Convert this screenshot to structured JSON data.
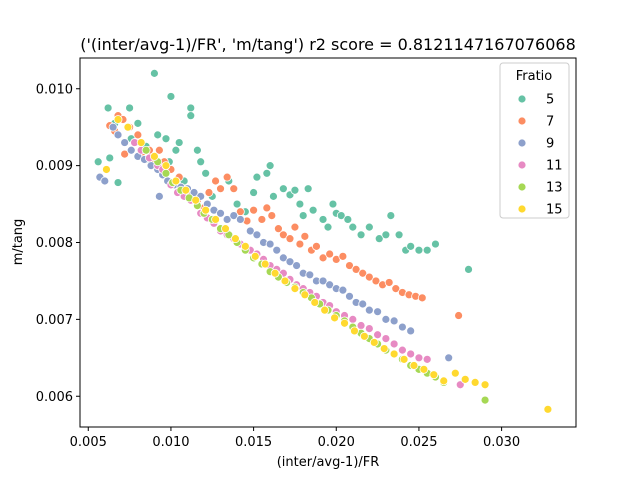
{
  "chart_data": {
    "type": "scatter",
    "title": "('(inter/avg-1)/FR', 'm/tang') r2 score = 0.8121147167076068",
    "xlabel": "(inter/avg-1)/FR",
    "ylabel": "m/tang",
    "xlim": [
      0.0045,
      0.0345
    ],
    "ylim": [
      0.0056,
      0.0104
    ],
    "xticks": [
      0.005,
      0.01,
      0.015,
      0.02,
      0.025,
      0.03
    ],
    "xtick_labels": [
      "0.005",
      "0.010",
      "0.015",
      "0.020",
      "0.025",
      "0.030"
    ],
    "yticks": [
      0.006,
      0.007,
      0.008,
      0.009,
      0.01
    ],
    "ytick_labels": [
      "0.006",
      "0.007",
      "0.008",
      "0.009",
      "0.010"
    ],
    "grid": false,
    "legend": {
      "title": "Fratio",
      "placement": "top-right"
    },
    "series": [
      {
        "name": "5",
        "color": "#66c2a5",
        "points": [
          [
            0.0056,
            0.00905
          ],
          [
            0.0062,
            0.00975
          ],
          [
            0.0063,
            0.0091
          ],
          [
            0.0066,
            0.00955
          ],
          [
            0.0068,
            0.00878
          ],
          [
            0.0075,
            0.00975
          ],
          [
            0.0076,
            0.00935
          ],
          [
            0.008,
            0.00955
          ],
          [
            0.0085,
            0.00925
          ],
          [
            0.0088,
            0.00905
          ],
          [
            0.009,
            0.0102
          ],
          [
            0.0092,
            0.0094
          ],
          [
            0.0097,
            0.00935
          ],
          [
            0.0099,
            0.00905
          ],
          [
            0.01,
            0.0099
          ],
          [
            0.0103,
            0.0092
          ],
          [
            0.0105,
            0.0093
          ],
          [
            0.0108,
            0.0088
          ],
          [
            0.0112,
            0.00975
          ],
          [
            0.0112,
            0.00965
          ],
          [
            0.0116,
            0.0092
          ],
          [
            0.0118,
            0.00905
          ],
          [
            0.0121,
            0.0089
          ],
          [
            0.0125,
            0.0086
          ],
          [
            0.0135,
            0.0088
          ],
          [
            0.014,
            0.0085
          ],
          [
            0.0145,
            0.0084
          ],
          [
            0.015,
            0.00865
          ],
          [
            0.0152,
            0.00885
          ],
          [
            0.0158,
            0.0089
          ],
          [
            0.016,
            0.009
          ],
          [
            0.0162,
            0.0086
          ],
          [
            0.0168,
            0.0087
          ],
          [
            0.0172,
            0.00862
          ],
          [
            0.0175,
            0.00868
          ],
          [
            0.0178,
            0.0085
          ],
          [
            0.018,
            0.00835
          ],
          [
            0.0183,
            0.0087
          ],
          [
            0.0186,
            0.00842
          ],
          [
            0.0192,
            0.0083
          ],
          [
            0.0195,
            0.0082
          ],
          [
            0.0198,
            0.0085
          ],
          [
            0.02,
            0.00838
          ],
          [
            0.0203,
            0.00835
          ],
          [
            0.0207,
            0.0083
          ],
          [
            0.021,
            0.0082
          ],
          [
            0.0215,
            0.0081
          ],
          [
            0.022,
            0.0082
          ],
          [
            0.0226,
            0.00805
          ],
          [
            0.023,
            0.0081
          ],
          [
            0.0233,
            0.00835
          ],
          [
            0.0238,
            0.0081
          ],
          [
            0.0242,
            0.0079
          ],
          [
            0.0245,
            0.00795
          ],
          [
            0.025,
            0.0079
          ],
          [
            0.0255,
            0.0079
          ],
          [
            0.026,
            0.00798
          ],
          [
            0.028,
            0.00765
          ]
        ]
      },
      {
        "name": "7",
        "color": "#fc8d62",
        "points": [
          [
            0.0063,
            0.00952
          ],
          [
            0.0066,
            0.00945
          ],
          [
            0.0068,
            0.00965
          ],
          [
            0.0071,
            0.0096
          ],
          [
            0.0072,
            0.00915
          ],
          [
            0.0075,
            0.0095
          ],
          [
            0.0078,
            0.0093
          ],
          [
            0.008,
            0.0094
          ],
          [
            0.0083,
            0.00918
          ],
          [
            0.0087,
            0.0092
          ],
          [
            0.009,
            0.00908
          ],
          [
            0.0093,
            0.0092
          ],
          [
            0.0096,
            0.00905
          ],
          [
            0.01,
            0.00895
          ],
          [
            0.0105,
            0.00885
          ],
          [
            0.0108,
            0.00868
          ],
          [
            0.0112,
            0.00862
          ],
          [
            0.0116,
            0.00855
          ],
          [
            0.012,
            0.00845
          ],
          [
            0.0123,
            0.00865
          ],
          [
            0.0127,
            0.0088
          ],
          [
            0.013,
            0.0087
          ],
          [
            0.0134,
            0.00885
          ],
          [
            0.0138,
            0.0087
          ],
          [
            0.0142,
            0.0084
          ],
          [
            0.0146,
            0.00828
          ],
          [
            0.015,
            0.00842
          ],
          [
            0.0155,
            0.0083
          ],
          [
            0.0158,
            0.00845
          ],
          [
            0.0161,
            0.00835
          ],
          [
            0.0165,
            0.00818
          ],
          [
            0.0168,
            0.0081
          ],
          [
            0.0172,
            0.00805
          ],
          [
            0.0175,
            0.0082
          ],
          [
            0.0178,
            0.00798
          ],
          [
            0.0181,
            0.00808
          ],
          [
            0.0185,
            0.0079
          ],
          [
            0.0188,
            0.00795
          ],
          [
            0.0192,
            0.0078
          ],
          [
            0.0196,
            0.00785
          ],
          [
            0.02,
            0.00778
          ],
          [
            0.0204,
            0.00782
          ],
          [
            0.0208,
            0.0077
          ],
          [
            0.0212,
            0.00765
          ],
          [
            0.0216,
            0.0076
          ],
          [
            0.022,
            0.00755
          ],
          [
            0.0224,
            0.0075
          ],
          [
            0.0228,
            0.00745
          ],
          [
            0.0232,
            0.00748
          ],
          [
            0.0236,
            0.0074
          ],
          [
            0.024,
            0.00735
          ],
          [
            0.0244,
            0.00732
          ],
          [
            0.0248,
            0.0073
          ],
          [
            0.0252,
            0.00728
          ],
          [
            0.0274,
            0.00705
          ]
        ]
      },
      {
        "name": "9",
        "color": "#8da0cb",
        "points": [
          [
            0.0057,
            0.00885
          ],
          [
            0.006,
            0.0088
          ],
          [
            0.0065,
            0.0095
          ],
          [
            0.0068,
            0.0094
          ],
          [
            0.0072,
            0.0093
          ],
          [
            0.0076,
            0.0092
          ],
          [
            0.008,
            0.00912
          ],
          [
            0.0084,
            0.00908
          ],
          [
            0.0088,
            0.009
          ],
          [
            0.0092,
            0.00895
          ],
          [
            0.0095,
            0.00888
          ],
          [
            0.0093,
            0.0086
          ],
          [
            0.0098,
            0.0088
          ],
          [
            0.0102,
            0.00875
          ],
          [
            0.0106,
            0.00872
          ],
          [
            0.011,
            0.0087
          ],
          [
            0.0114,
            0.00865
          ],
          [
            0.0118,
            0.0086
          ],
          [
            0.0122,
            0.0085
          ],
          [
            0.0126,
            0.00842
          ],
          [
            0.013,
            0.00838
          ],
          [
            0.0134,
            0.0083
          ],
          [
            0.0138,
            0.00835
          ],
          [
            0.0142,
            0.0083
          ],
          [
            0.0148,
            0.00815
          ],
          [
            0.0152,
            0.0081
          ],
          [
            0.0156,
            0.008
          ],
          [
            0.016,
            0.00798
          ],
          [
            0.0164,
            0.0079
          ],
          [
            0.0168,
            0.0078
          ],
          [
            0.0172,
            0.00775
          ],
          [
            0.0176,
            0.0077
          ],
          [
            0.018,
            0.0076
          ],
          [
            0.0184,
            0.00758
          ],
          [
            0.0188,
            0.0075
          ],
          [
            0.0192,
            0.0075
          ],
          [
            0.0196,
            0.00745
          ],
          [
            0.02,
            0.0074
          ],
          [
            0.0204,
            0.00738
          ],
          [
            0.0208,
            0.0073
          ],
          [
            0.0212,
            0.00722
          ],
          [
            0.0216,
            0.0072
          ],
          [
            0.022,
            0.00712
          ],
          [
            0.0225,
            0.0071
          ],
          [
            0.023,
            0.007
          ],
          [
            0.0235,
            0.00698
          ],
          [
            0.024,
            0.0069
          ],
          [
            0.0245,
            0.00685
          ],
          [
            0.0268,
            0.0065
          ]
        ]
      },
      {
        "name": "11",
        "color": "#e78ac3",
        "points": [
          [
            0.0078,
            0.0093
          ],
          [
            0.0082,
            0.0092
          ],
          [
            0.0087,
            0.0091
          ],
          [
            0.0092,
            0.009
          ],
          [
            0.0095,
            0.00895
          ],
          [
            0.01,
            0.00875
          ],
          [
            0.0104,
            0.00865
          ],
          [
            0.0108,
            0.0086
          ],
          [
            0.0112,
            0.00855
          ],
          [
            0.0118,
            0.00838
          ],
          [
            0.0122,
            0.00832
          ],
          [
            0.0126,
            0.00825
          ],
          [
            0.013,
            0.00815
          ],
          [
            0.0134,
            0.0081
          ],
          [
            0.0138,
            0.00805
          ],
          [
            0.0142,
            0.00798
          ],
          [
            0.0148,
            0.0079
          ],
          [
            0.0152,
            0.00785
          ],
          [
            0.0156,
            0.00778
          ],
          [
            0.016,
            0.0077
          ],
          [
            0.0164,
            0.00765
          ],
          [
            0.0168,
            0.0076
          ],
          [
            0.0172,
            0.00752
          ],
          [
            0.0176,
            0.00745
          ],
          [
            0.018,
            0.0074
          ],
          [
            0.0184,
            0.00735
          ],
          [
            0.0188,
            0.0073
          ],
          [
            0.0192,
            0.00722
          ],
          [
            0.0196,
            0.00718
          ],
          [
            0.02,
            0.0071
          ],
          [
            0.0205,
            0.00705
          ],
          [
            0.021,
            0.007
          ],
          [
            0.0215,
            0.00692
          ],
          [
            0.022,
            0.00688
          ],
          [
            0.0225,
            0.0068
          ],
          [
            0.023,
            0.00675
          ],
          [
            0.0235,
            0.00668
          ],
          [
            0.024,
            0.0066
          ],
          [
            0.0245,
            0.00655
          ],
          [
            0.025,
            0.0065
          ],
          [
            0.0255,
            0.00648
          ],
          [
            0.0275,
            0.00615
          ]
        ]
      },
      {
        "name": "13",
        "color": "#a6d854",
        "points": [
          [
            0.0085,
            0.0092
          ],
          [
            0.0092,
            0.00905
          ],
          [
            0.0097,
            0.0089
          ],
          [
            0.0101,
            0.00878
          ],
          [
            0.0106,
            0.00868
          ],
          [
            0.0111,
            0.00858
          ],
          [
            0.0116,
            0.00848
          ],
          [
            0.012,
            0.00838
          ],
          [
            0.0125,
            0.0083
          ],
          [
            0.013,
            0.00818
          ],
          [
            0.0135,
            0.0081
          ],
          [
            0.014,
            0.008
          ],
          [
            0.0145,
            0.0079
          ],
          [
            0.015,
            0.0078
          ],
          [
            0.0155,
            0.00772
          ],
          [
            0.016,
            0.00762
          ],
          [
            0.0165,
            0.00755
          ],
          [
            0.017,
            0.00748
          ],
          [
            0.0175,
            0.00742
          ],
          [
            0.018,
            0.00735
          ],
          [
            0.0185,
            0.00728
          ],
          [
            0.019,
            0.0072
          ],
          [
            0.0195,
            0.00712
          ],
          [
            0.02,
            0.00705
          ],
          [
            0.0205,
            0.00698
          ],
          [
            0.021,
            0.0069
          ],
          [
            0.0215,
            0.00682
          ],
          [
            0.022,
            0.00675
          ],
          [
            0.0225,
            0.00668
          ],
          [
            0.023,
            0.0066
          ],
          [
            0.0235,
            0.00655
          ],
          [
            0.024,
            0.00648
          ],
          [
            0.0245,
            0.0064
          ],
          [
            0.025,
            0.00635
          ],
          [
            0.0255,
            0.0063
          ],
          [
            0.026,
            0.00625
          ],
          [
            0.0265,
            0.00618
          ],
          [
            0.029,
            0.00595
          ]
        ]
      },
      {
        "name": "15",
        "color": "#ffd92f",
        "points": [
          [
            0.0061,
            0.00895
          ],
          [
            0.0068,
            0.0096
          ],
          [
            0.0074,
            0.0095
          ],
          [
            0.0082,
            0.0093
          ],
          [
            0.009,
            0.00912
          ],
          [
            0.0097,
            0.009
          ],
          [
            0.0103,
            0.0088
          ],
          [
            0.0109,
            0.00868
          ],
          [
            0.0115,
            0.00855
          ],
          [
            0.0121,
            0.00842
          ],
          [
            0.0127,
            0.0083
          ],
          [
            0.0133,
            0.00818
          ],
          [
            0.0139,
            0.00805
          ],
          [
            0.0145,
            0.00795
          ],
          [
            0.0151,
            0.00782
          ],
          [
            0.0157,
            0.00772
          ],
          [
            0.0163,
            0.0076
          ],
          [
            0.0169,
            0.0075
          ],
          [
            0.0175,
            0.0074
          ],
          [
            0.0181,
            0.00732
          ],
          [
            0.0187,
            0.00722
          ],
          [
            0.0193,
            0.00712
          ],
          [
            0.0199,
            0.00702
          ],
          [
            0.0205,
            0.00695
          ],
          [
            0.0211,
            0.00685
          ],
          [
            0.0217,
            0.00678
          ],
          [
            0.0223,
            0.0067
          ],
          [
            0.0229,
            0.00662
          ],
          [
            0.0235,
            0.00655
          ],
          [
            0.0241,
            0.00648
          ],
          [
            0.0247,
            0.0064
          ],
          [
            0.0253,
            0.00635
          ],
          [
            0.0259,
            0.00628
          ],
          [
            0.0265,
            0.0062
          ],
          [
            0.0272,
            0.0063
          ],
          [
            0.0278,
            0.00622
          ],
          [
            0.0284,
            0.00618
          ],
          [
            0.029,
            0.00615
          ],
          [
            0.0328,
            0.00583
          ]
        ]
      }
    ]
  }
}
